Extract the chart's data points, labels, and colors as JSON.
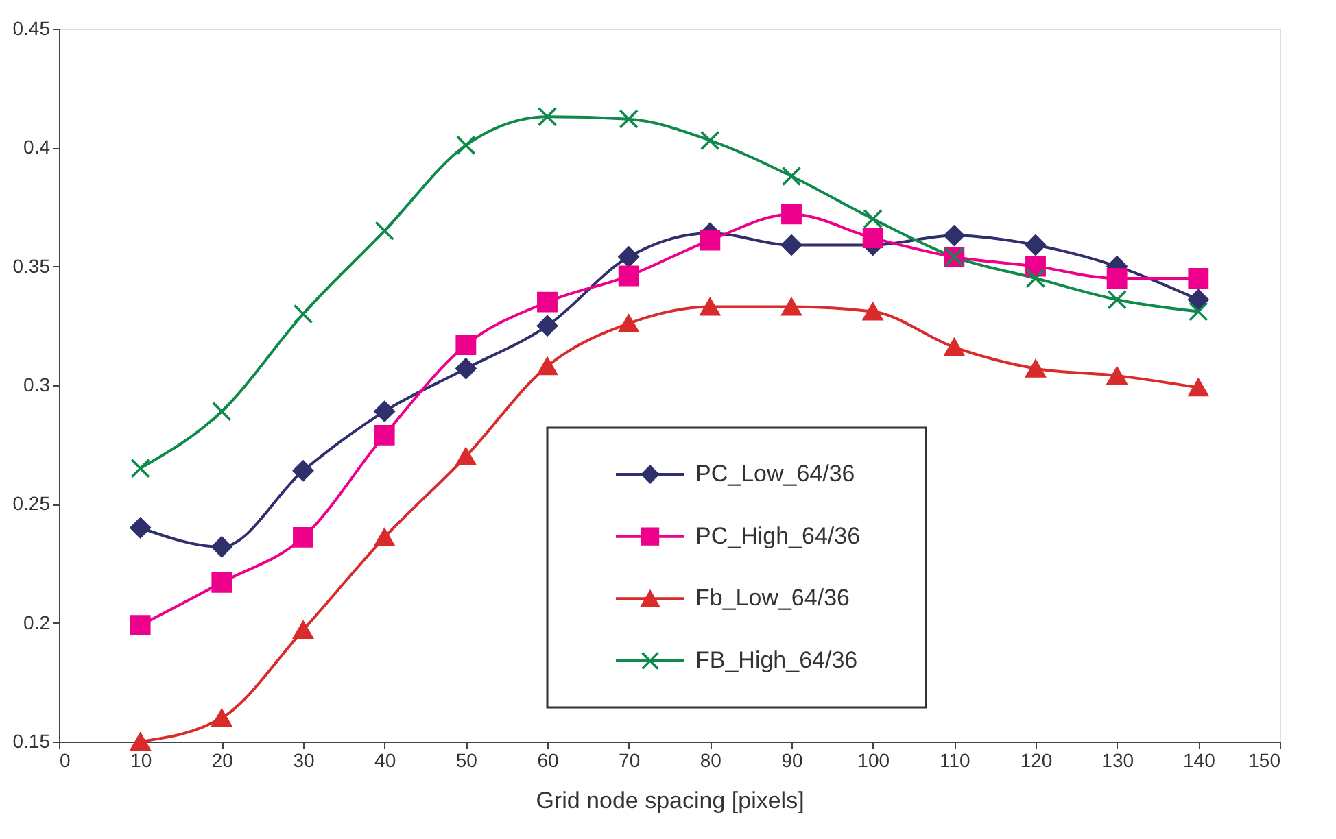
{
  "chart_data": {
    "type": "line",
    "xlabel": "Grid node spacing [pixels]",
    "x": [
      10,
      20,
      30,
      40,
      50,
      60,
      70,
      80,
      90,
      100,
      110,
      120,
      130,
      140
    ],
    "series": [
      {
        "name": "PC_Low_64/36",
        "color": "#2e2f6b",
        "marker": "diamond",
        "values": [
          0.24,
          0.232,
          0.264,
          0.289,
          0.307,
          0.325,
          0.354,
          0.364,
          0.359,
          0.359,
          0.363,
          0.359,
          0.35,
          0.336
        ]
      },
      {
        "name": "PC_High_64/36",
        "color": "#ec008c",
        "marker": "square",
        "values": [
          0.199,
          0.217,
          0.236,
          0.279,
          0.317,
          0.335,
          0.346,
          0.361,
          0.372,
          0.362,
          0.354,
          0.35,
          0.345,
          0.345
        ]
      },
      {
        "name": "Fb_Low_64/36",
        "color": "#d92b2b",
        "marker": "triangle",
        "values": [
          0.15,
          0.16,
          0.197,
          0.236,
          0.27,
          0.308,
          0.326,
          0.333,
          0.333,
          0.331,
          0.316,
          0.307,
          0.304,
          0.299
        ]
      },
      {
        "name": "FB_High_64/36",
        "color": "#0e8a4a",
        "marker": "cross",
        "values": [
          0.265,
          0.289,
          0.33,
          0.365,
          0.401,
          0.413,
          0.412,
          0.403,
          0.388,
          0.37,
          0.354,
          0.345,
          0.336,
          0.331
        ]
      }
    ],
    "xlim": [
      0,
      150
    ],
    "xticks": [
      0,
      10,
      20,
      30,
      40,
      50,
      60,
      70,
      80,
      90,
      100,
      110,
      120,
      130,
      140,
      150
    ],
    "ylim": [
      0.15,
      0.45
    ],
    "yticks": [
      0.15,
      0.2,
      0.25,
      0.3,
      0.35,
      0.4,
      0.45
    ],
    "grid": false,
    "legend": "bottom",
    "line_style": "solid"
  }
}
